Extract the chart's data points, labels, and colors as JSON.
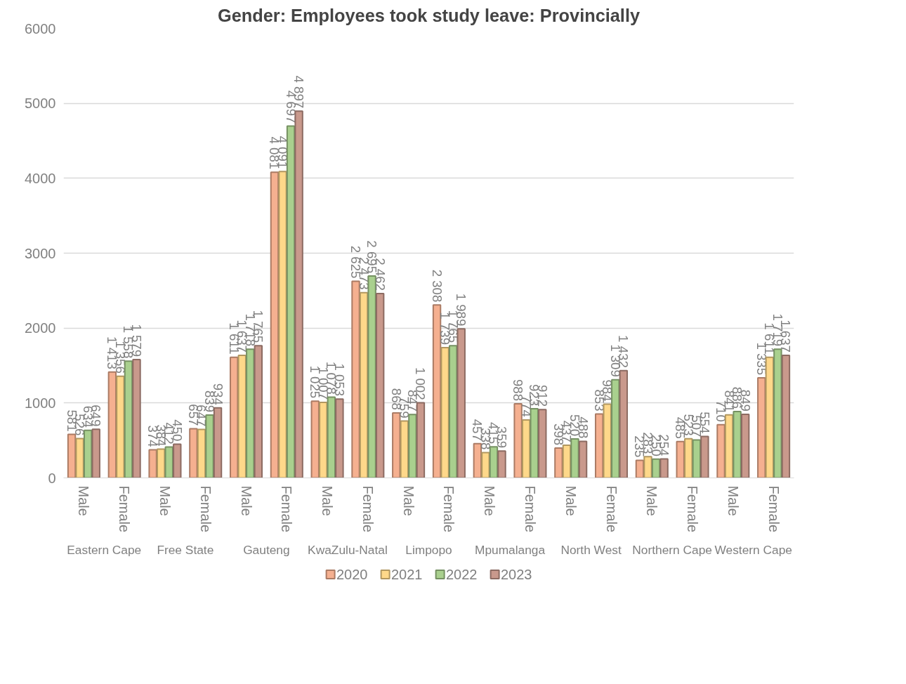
{
  "chart_data": {
    "type": "bar",
    "title": "Gender: Employees took study leave: Provincially",
    "categories": [
      "Male",
      "Female",
      "Male",
      "Female",
      "Male",
      "Female",
      "Male",
      "Female",
      "Male",
      "Female",
      "Male",
      "Female",
      "Male",
      "Female",
      "Male",
      "Female",
      "Male",
      "Female"
    ],
    "annotations": [
      "Eastern Cape",
      "Free State",
      "Gauteng",
      "KwaZulu-Natal",
      "Limpopo",
      "Mpumalanga",
      "North West",
      "Northern Cape",
      "Western Cape"
    ],
    "series": [
      {
        "name": "2020",
        "color": "#f5b090",
        "values": [
          581,
          1413,
          374,
          657,
          1611,
          4081,
          1025,
          2625,
          868,
          2308,
          457,
          988,
          398,
          853,
          235,
          485,
          710,
          1335
        ],
        "value_labels": [
          "581",
          "1 413",
          "374",
          "657",
          "1 611",
          "4 081",
          "1 025",
          "2 625",
          "868",
          "2 308",
          "457",
          "988",
          "398",
          "853",
          "235",
          "485",
          "710",
          "1 335"
        ]
      },
      {
        "name": "2021",
        "color": "#fed88a",
        "values": [
          526,
          1356,
          384,
          647,
          1637,
          4091,
          1007,
          2473,
          759,
          1739,
          338,
          774,
          437,
          984,
          283,
          523,
          841,
          1611
        ],
        "value_labels": [
          "526",
          "1 356",
          "384",
          "647",
          "1 637",
          "4 091",
          "1 007",
          "2 473",
          "759",
          "1 739",
          "338",
          "774",
          "437",
          "984",
          "283",
          "523",
          "841",
          "1 611"
        ]
      },
      {
        "name": "2022",
        "color": "#a9d08e",
        "values": [
          634,
          1558,
          412,
          839,
          1718,
          4697,
          1078,
          2695,
          847,
          1765,
          415,
          923,
          520,
          1309,
          250,
          507,
          886,
          1719
        ],
        "value_labels": [
          "634",
          "1 558",
          "412",
          "839",
          "1 718",
          "4 697",
          "1 078",
          "2 695",
          "847",
          "1 765",
          "415",
          "923",
          "520",
          "1 309",
          "250",
          "507",
          "886",
          "1 719"
        ]
      },
      {
        "name": "2023",
        "color": "#c9998c",
        "values": [
          649,
          1579,
          450,
          934,
          1765,
          4897,
          1053,
          2462,
          1002,
          1989,
          359,
          912,
          488,
          1432,
          254,
          554,
          849,
          1637
        ],
        "value_labels": [
          "649",
          "1 579",
          "450",
          "934",
          "1 765",
          "4 897",
          "1 053",
          "2 462",
          "1 002",
          "1 989",
          "359",
          "912",
          "488",
          "1 432",
          "254",
          "554",
          "849",
          "1 637"
        ]
      }
    ],
    "ylim": [
      0,
      6000
    ],
    "yticks": [
      0,
      1000,
      2000,
      3000,
      4000,
      5000,
      6000
    ],
    "grid": "y",
    "legend": "bottom"
  }
}
